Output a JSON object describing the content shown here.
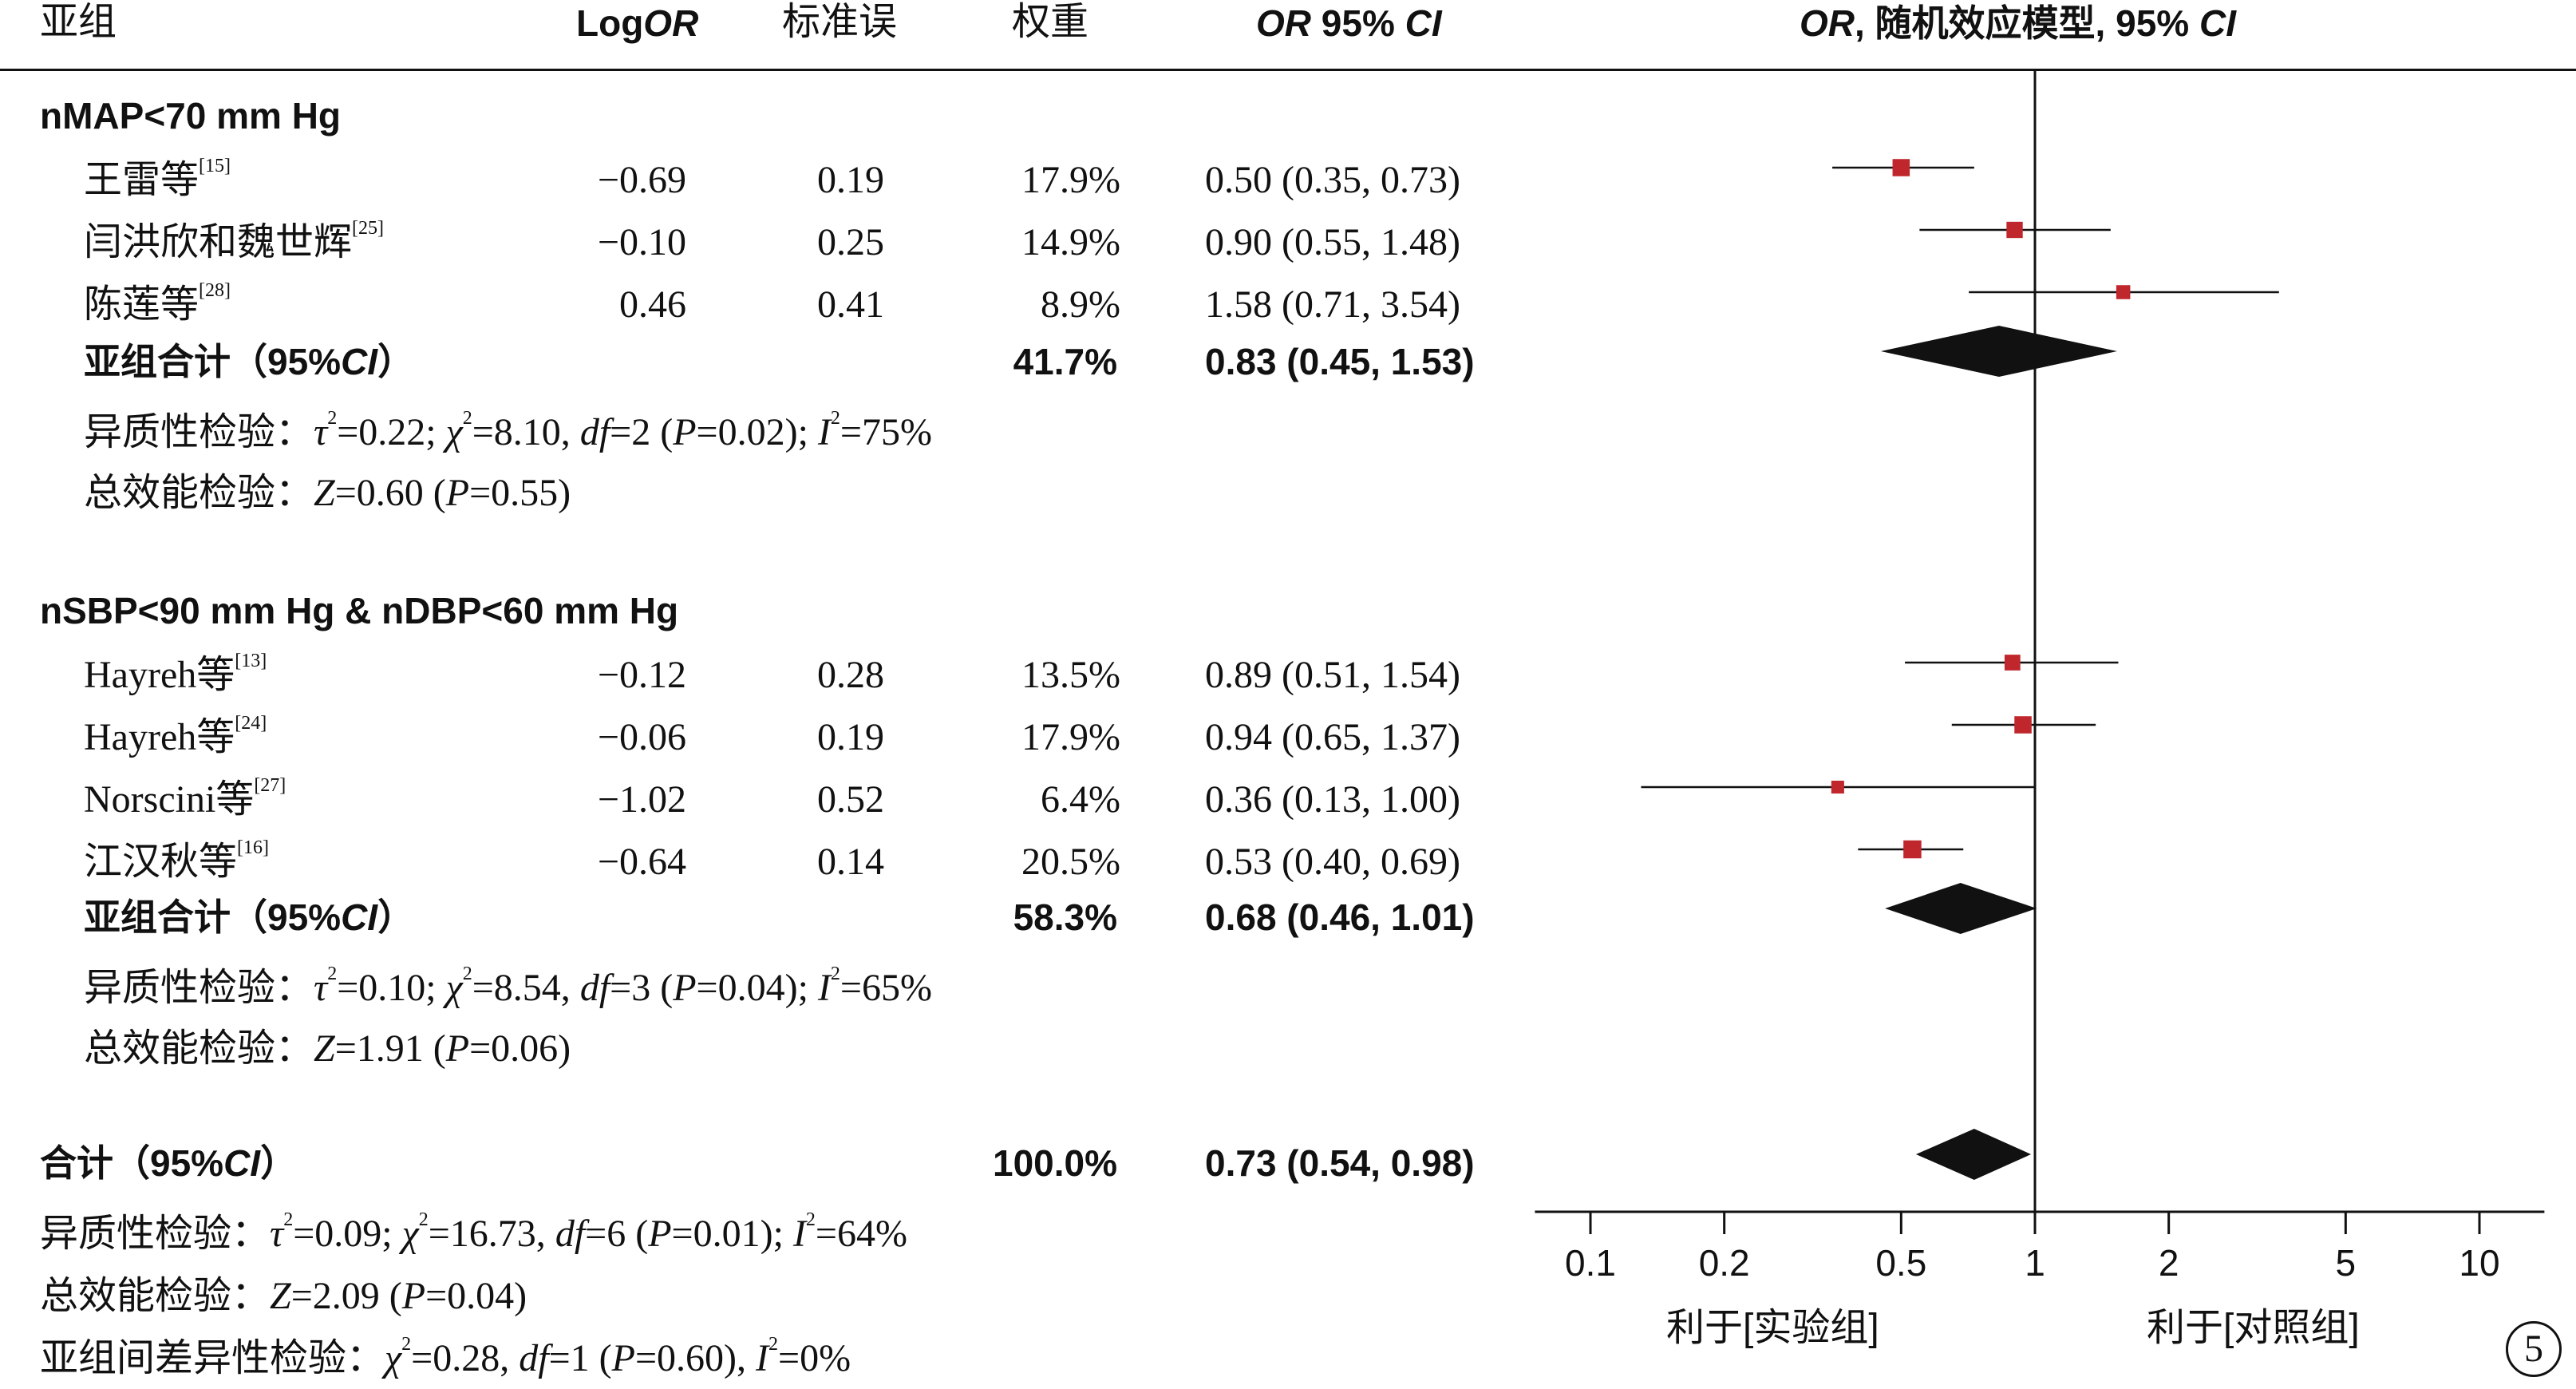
{
  "header": {
    "subgroup": "亚组",
    "logor_pre": "Log",
    "logor_it": "OR",
    "se": "标准误",
    "weight": "权重",
    "ci_it": "OR",
    "ci_rest": " 95% ",
    "ci_it2": "CI",
    "plot_it": "OR",
    "plot_rest": ", 随机效应模型, 95% ",
    "plot_it2": "CI"
  },
  "groups": [
    {
      "title": "nMAP<70 mm Hg",
      "studies": [
        {
          "name": "王雷等",
          "ref": "[15]",
          "logor": "−0.69",
          "se": "0.19",
          "weight": "17.9%",
          "ci": "0.50 (0.35, 0.73)"
        },
        {
          "name": "闫洪欣和魏世辉",
          "ref": "[25]",
          "logor": "−0.10",
          "se": "0.25",
          "weight": "14.9%",
          "ci": "0.90 (0.55, 1.48)"
        },
        {
          "name": "陈莲等",
          "ref": "[28]",
          "logor": "0.46",
          "se": "0.41",
          "weight": "8.9%",
          "ci": "1.58 (0.71, 3.54)"
        }
      ],
      "subtotal_label_pre": "亚组合计（95%",
      "subtotal_label_it": "CI",
      "subtotal_label_post": "）",
      "subtotal_weight": "41.7%",
      "subtotal_ci": "0.83 (0.45, 1.53)",
      "het_pre": "异质性检验：",
      "het_tau": "τ",
      "het_tau_val": "=0.22; ",
      "het_chi": "χ",
      "het_chi_val": "=8.10, ",
      "het_df": "df",
      "het_df_val": "=2 (",
      "het_p": "P",
      "het_p_val": "=0.02); ",
      "het_i": "I",
      "het_i_val": "=75%",
      "eff_pre": "总效能检验：",
      "eff_z": "Z",
      "eff_z_val": "=0.60 (",
      "eff_p": "P",
      "eff_p_val": "=0.55)"
    },
    {
      "title": "nSBP<90 mm Hg & nDBP<60 mm Hg",
      "studies": [
        {
          "name": "Hayreh等",
          "ref": "[13]",
          "logor": "−0.12",
          "se": "0.28",
          "weight": "13.5%",
          "ci": "0.89 (0.51, 1.54)"
        },
        {
          "name": "Hayreh等",
          "ref": "[24]",
          "logor": "−0.06",
          "se": "0.19",
          "weight": "17.9%",
          "ci": "0.94 (0.65, 1.37)"
        },
        {
          "name": "Norscini等",
          "ref": "[27]",
          "logor": "−1.02",
          "se": "0.52",
          "weight": "6.4%",
          "ci": "0.36 (0.13, 1.00)"
        },
        {
          "name": "江汉秋等",
          "ref": "[16]",
          "logor": "−0.64",
          "se": "0.14",
          "weight": "20.5%",
          "ci": "0.53 (0.40, 0.69)"
        }
      ],
      "subtotal_label_pre": "亚组合计（95%",
      "subtotal_label_it": "CI",
      "subtotal_label_post": "）",
      "subtotal_weight": "58.3%",
      "subtotal_ci": "0.68 (0.46, 1.01)",
      "het_pre": "异质性检验：",
      "het_tau": "τ",
      "het_tau_val": "=0.10; ",
      "het_chi": "χ",
      "het_chi_val": "=8.54, ",
      "het_df": "df",
      "het_df_val": "=3 (",
      "het_p": "P",
      "het_p_val": "=0.04); ",
      "het_i": "I",
      "het_i_val": "=65%",
      "eff_pre": "总效能检验：",
      "eff_z": "Z",
      "eff_z_val": "=1.91 (",
      "eff_p": "P",
      "eff_p_val": "=0.06)"
    }
  ],
  "total": {
    "label_pre": "合计（95%",
    "label_it": "CI",
    "label_post": "）",
    "weight": "100.0%",
    "ci": "0.73 (0.54, 0.98)",
    "het_pre": "异质性检验：",
    "het_tau": "τ",
    "het_tau_val": "=0.09; ",
    "het_chi": "χ",
    "het_chi_val": "=16.73, ",
    "het_df": "df",
    "het_df_val": "=6 (",
    "het_p": "P",
    "het_p_val": "=0.01); ",
    "het_i": "I",
    "het_i_val": "=64%",
    "eff_pre": "总效能检验：",
    "eff_z": "Z",
    "eff_z_val": "=2.09 (",
    "eff_p": "P",
    "eff_p_val": "=0.04)",
    "between_pre": "亚组间差异性检验：",
    "between_chi": "χ",
    "between_chi_val": "=0.28, ",
    "between_df": "df",
    "between_df_val": "=1 (",
    "between_p": "P",
    "between_p_val": "=0.60), ",
    "between_i": "I",
    "between_i_val": "=0%"
  },
  "axis": {
    "favours_left": "利于[实验组]",
    "favours_right": "利于[对照组]"
  },
  "panel_number": "5",
  "colors": {
    "marker": "#c0272d",
    "diamond": "#111111",
    "line": "#111111"
  },
  "chart_data": {
    "type": "forest",
    "scale": "log",
    "xlim": [
      0.075,
      14
    ],
    "ticks": [
      0.1,
      0.2,
      0.5,
      1,
      2,
      5,
      10
    ],
    "tick_labels": [
      "0.1",
      "0.2",
      "0.5",
      "1",
      "2",
      "5",
      "10"
    ],
    "null_value": 1,
    "studies": [
      {
        "label": "王雷等",
        "or": 0.5,
        "lo": 0.35,
        "hi": 0.73,
        "weight": 17.9
      },
      {
        "label": "闫洪欣和魏世辉",
        "or": 0.9,
        "lo": 0.55,
        "hi": 1.48,
        "weight": 14.9
      },
      {
        "label": "陈莲等",
        "or": 1.58,
        "lo": 0.71,
        "hi": 3.54,
        "weight": 8.9
      },
      {
        "label": "Hayreh等 [13]",
        "or": 0.89,
        "lo": 0.51,
        "hi": 1.54,
        "weight": 13.5
      },
      {
        "label": "Hayreh等 [24]",
        "or": 0.94,
        "lo": 0.65,
        "hi": 1.37,
        "weight": 17.9
      },
      {
        "label": "Norscini等",
        "or": 0.36,
        "lo": 0.13,
        "hi": 1.0,
        "weight": 6.4
      },
      {
        "label": "江汉秋等",
        "or": 0.53,
        "lo": 0.4,
        "hi": 0.69,
        "weight": 20.5
      }
    ],
    "summaries": [
      {
        "label": "nMAP<70 mm Hg 亚组合计",
        "or": 0.83,
        "lo": 0.45,
        "hi": 1.53
      },
      {
        "label": "nSBP<90 mm Hg & nDBP<60 mm Hg 亚组合计",
        "or": 0.68,
        "lo": 0.46,
        "hi": 1.01
      },
      {
        "label": "合计",
        "or": 0.73,
        "lo": 0.54,
        "hi": 0.98
      }
    ]
  }
}
